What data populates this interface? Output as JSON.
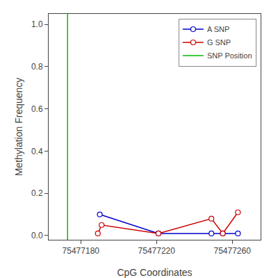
{
  "chart_data": {
    "type": "line",
    "xlabel": "CpG Coordinates",
    "ylabel": "Methylation Frequency",
    "series": [
      {
        "name": "A SNP",
        "type": "line",
        "color": "#0000cc",
        "marker": "circle",
        "x": [
          75477190,
          75477221,
          75477249,
          75477255,
          75477263
        ],
        "values": [
          0.1,
          0.01,
          0.01,
          0.01,
          0.01
        ]
      },
      {
        "name": "G SNP",
        "type": "line",
        "color": "#cc0000",
        "marker": "circle",
        "x": [
          75477189,
          75477191,
          75477221,
          75477249,
          75477255,
          75477263
        ],
        "values": [
          0.01,
          0.05,
          0.01,
          0.08,
          0.01,
          0.11
        ]
      },
      {
        "name": "SNP Position",
        "type": "vline",
        "color": "#00bb00",
        "x": [
          75477173
        ]
      }
    ],
    "xlim": [
      75477163,
      75477275
    ],
    "ylim": [
      -0.02,
      1.05
    ],
    "xticks": [
      75477180,
      75477220,
      75477260
    ],
    "yticks": [
      {
        "value": 0,
        "label": "0.0"
      },
      0.2,
      0.4,
      0.6,
      0.8,
      {
        "value": 1,
        "label": "1.0"
      }
    ],
    "grid": false,
    "legend": "upper right"
  }
}
